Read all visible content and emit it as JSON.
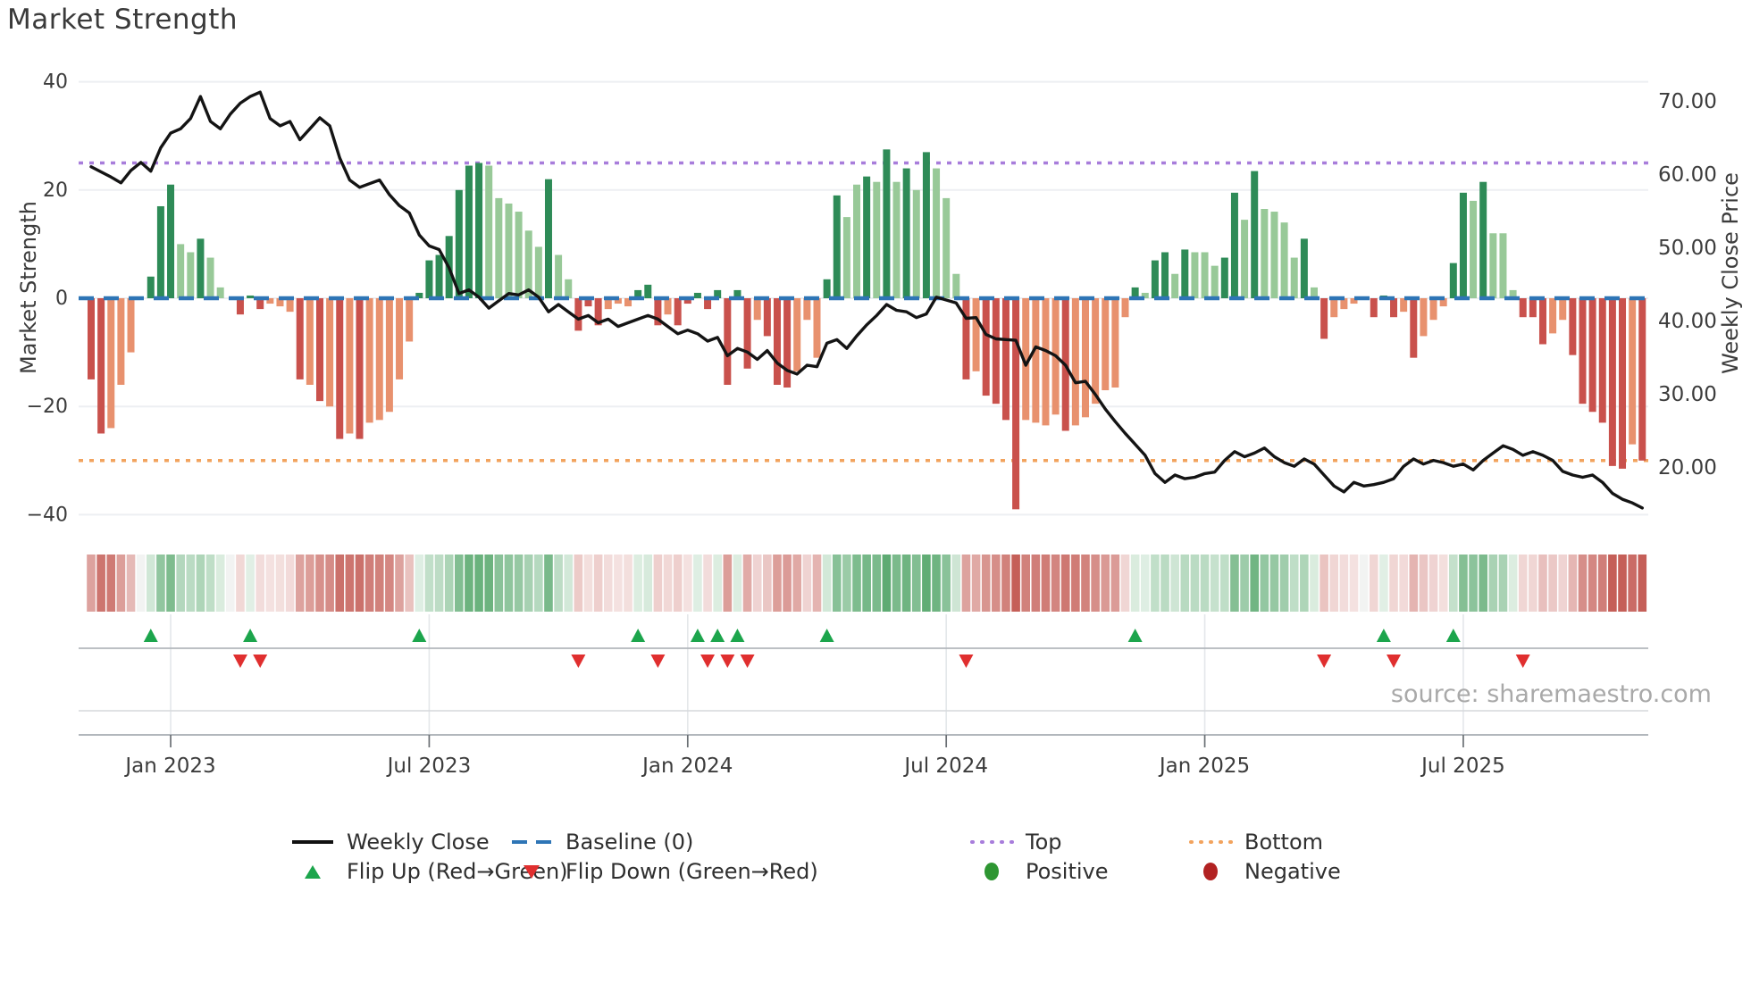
{
  "title": "Market Strength",
  "source": "source: sharemaestro.com",
  "axes": {
    "left_title": "Market Strength",
    "right_title": "Weekly Close Price",
    "left_tick_labels": [
      "40",
      "20",
      "0",
      "−20",
      "−40"
    ],
    "left_tick_values": [
      40,
      20,
      0,
      -20,
      -40
    ],
    "right_tick_labels": [
      "70.00",
      "60.00",
      "50.00",
      "40.00",
      "30.00",
      "20.00"
    ],
    "right_tick_values": [
      70,
      60,
      50,
      40,
      30,
      20
    ],
    "x_tick_labels": [
      "Jan 2023",
      "Jul 2023",
      "Jan 2024",
      "Jul 2024",
      "Jan 2025",
      "Jul 2025"
    ],
    "x_tick_weeks": [
      8,
      34,
      60,
      86,
      112,
      138
    ]
  },
  "chart_data": {
    "type": "bar+line",
    "title": "Market Strength",
    "weeks": 157,
    "x_range_note": "weekly bars from Nov 2022 to Nov 2025",
    "left_axis_label": "Market Strength",
    "right_axis_label": "Weekly Close Price",
    "left_ylim": [
      -42,
      45
    ],
    "right_ylim": [
      13,
      76
    ],
    "grid": "horizontal-only",
    "legend_position": "bottom",
    "series": [
      {
        "name": "Market Strength bars",
        "type": "bar",
        "axis": "left",
        "values": [
          -15,
          -25,
          -24,
          -16,
          -10,
          0,
          4,
          17,
          21,
          10,
          8.5,
          11,
          7.5,
          2,
          0,
          -3,
          0.5,
          -2,
          -1,
          -1.5,
          -2.5,
          -15,
          -16,
          -19,
          -20,
          -26,
          -25,
          -26,
          -23,
          -22.5,
          -21,
          -15,
          -8,
          1,
          7,
          8,
          11.5,
          20,
          24.5,
          25,
          24.5,
          18.5,
          17.5,
          16,
          12.5,
          9.5,
          22,
          8,
          3.5,
          -6,
          -1.5,
          -5,
          -2,
          -1,
          -1.5,
          1.5,
          2.5,
          -5,
          -3,
          -5,
          -1,
          1,
          -2,
          1.5,
          -16,
          1.5,
          -13,
          -4,
          -7,
          -16,
          -16.5,
          -13.5,
          -4,
          -11,
          3.5,
          19,
          15,
          21,
          22.5,
          21.5,
          27.5,
          21.5,
          24,
          20,
          27,
          24,
          18.5,
          4.5,
          -15,
          -13.5,
          -18,
          -19.5,
          -22.5,
          -39,
          -22.5,
          -23,
          -23.5,
          -21.5,
          -24.5,
          -23.5,
          -22,
          -19.5,
          -17,
          -16.5,
          -3.5,
          2,
          1,
          7,
          8.5,
          4.5,
          9,
          8.5,
          8.5,
          6,
          7.5,
          19.5,
          14.5,
          23.5,
          16.5,
          16,
          14,
          7.5,
          11,
          2,
          -7.5,
          -3.5,
          -2,
          -1,
          0,
          -3.5,
          0.5,
          -3.5,
          -2.5,
          -11,
          -7,
          -4,
          -1.5,
          6.5,
          19.5,
          18,
          21.5,
          12,
          12,
          1.5,
          -3.5,
          -3.5,
          -8.5,
          -6.5,
          -4,
          -10.5,
          -19.5,
          -21,
          -23,
          -31,
          -31.5,
          -27,
          -30
        ],
        "shades": "DDLLLNDDDLLDLLNDDDLLLDLDLDLDLLLLLDDDDDDDLLLLLLDLLDDDLLLDDDLDDDDDDDDLDDDLLLDDLLDLDLDLDLLLDLDDDDLLLLDLLLLLLDLDDLDLLLDDLDLLLLDLDLLLNDDDLDLLLDDLDLLLDDDLLDDDDDDLD"
      },
      {
        "name": "Weekly Close",
        "type": "line",
        "axis": "right",
        "values": [
          61,
          60.3,
          59.6,
          58.8,
          60.5,
          61.6,
          60.4,
          63.6,
          65.6,
          66.2,
          67.6,
          70.6,
          67.2,
          66.2,
          68.2,
          69.7,
          70.6,
          71.2,
          67.6,
          66.6,
          67.2,
          64.7,
          66.2,
          67.7,
          66.6,
          62.2,
          59.2,
          58.2,
          58.7,
          59.2,
          57.2,
          55.7,
          54.7,
          51.7,
          50.2,
          49.7,
          47.2,
          43.7,
          44.2,
          43.2,
          41.7,
          42.7,
          43.7,
          43.5,
          44.2,
          43.2,
          41.2,
          42.2,
          41.2,
          40.2,
          40.7,
          39.7,
          40.2,
          39.2,
          39.7,
          40.2,
          40.7,
          40.2,
          39.2,
          38.2,
          38.7,
          38.2,
          37.2,
          37.7,
          35.2,
          36.2,
          35.7,
          34.7,
          35.9,
          34.2,
          33.2,
          32.7,
          33.9,
          33.7,
          36.9,
          37.4,
          36.2,
          37.9,
          39.4,
          40.7,
          42.2,
          41.4,
          41.2,
          40.4,
          40.9,
          43.2,
          42.8,
          42.4,
          40.3,
          40.4,
          38.1,
          37.5,
          37.4,
          37.3,
          33.9,
          36.4,
          35.9,
          35.2,
          33.9,
          31.5,
          31.7,
          29.9,
          27.9,
          26.2,
          24.6,
          23.1,
          21.6,
          19.1,
          17.9,
          18.9,
          18.4,
          18.6,
          19.1,
          19.3,
          20.9,
          22.1,
          21.4,
          21.9,
          22.6,
          21.4,
          20.6,
          20.1,
          21.1,
          20.4,
          18.9,
          17.4,
          16.6,
          17.9,
          17.4,
          17.6,
          17.9,
          18.4,
          20.1,
          21.1,
          20.4,
          20.9,
          20.6,
          20.1,
          20.4,
          19.6,
          20.9,
          21.9,
          22.9,
          22.4,
          21.6,
          22.1,
          21.6,
          20.9,
          19.4,
          18.9,
          18.6,
          18.9,
          17.9,
          16.4,
          15.6,
          15.1,
          14.4
        ]
      }
    ],
    "heatmap": {
      "note": "one cell per week below main plot, red-green intensity mirrors bar values",
      "source_series": "Market Strength bars"
    },
    "markers": {
      "flip_up_weeks": [
        6,
        16,
        33,
        55,
        61,
        63,
        65,
        74,
        105,
        130,
        137
      ],
      "flip_down_weeks": [
        15,
        17,
        49,
        57,
        62,
        64,
        66,
        88,
        124,
        131,
        144
      ]
    },
    "reference_lines": {
      "baseline": {
        "label": "Baseline (0)",
        "value": 0
      },
      "top": {
        "label": "Top",
        "value": 25
      },
      "bottom": {
        "label": "Bottom",
        "value": -30
      }
    }
  },
  "legend": {
    "items": [
      {
        "label": "Weekly Close"
      },
      {
        "label": "Baseline (0)"
      },
      {
        "label": "Top"
      },
      {
        "label": "Bottom"
      },
      {
        "label": "Flip Up (Red→Green)"
      },
      {
        "label": "Flip Down (Green→Red)"
      },
      {
        "label": "Positive"
      },
      {
        "label": "Negative"
      }
    ]
  },
  "colors": {
    "bar_pos_strong": "#2e8b57",
    "bar_pos_light": "#98c998",
    "bar_neg_strong": "#c9514c",
    "bar_neg_light": "#e8916e",
    "baseline": "#2e75b6",
    "top_line": "#a87ddb",
    "bottom_line": "#f2a35e",
    "price_line": "#141414",
    "flip_up": "#1ca54c",
    "flip_down": "#e02f2f",
    "positive_dot": "#2e9632",
    "negative_dot": "#b22222",
    "grid": "#edeff2",
    "tick_text": "#3c3c3c"
  }
}
